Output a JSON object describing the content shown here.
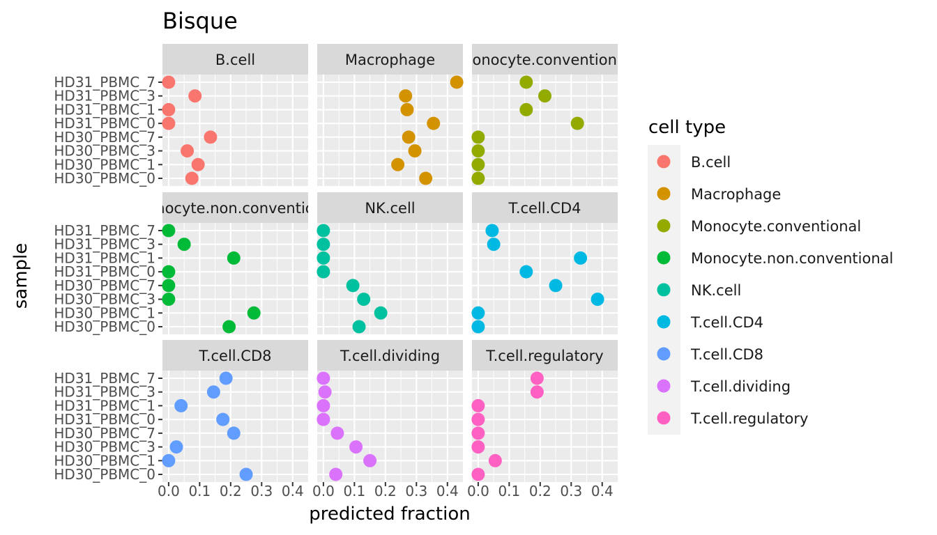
{
  "chart_data": {
    "type": "scatter",
    "title": "Bisque",
    "xlabel": "predicted fraction",
    "ylabel": "sample",
    "xlim": [
      -0.02,
      0.45
    ],
    "x_ticks": [
      "0.0",
      "0.1",
      "0.2",
      "0.3",
      "0.4"
    ],
    "x_tick_values": [
      0,
      0.1,
      0.2,
      0.3,
      0.4
    ],
    "samples": [
      "HD31_PBMC_7",
      "HD31_PBMC_3",
      "HD31_PBMC_1",
      "HD31_PBMC_0",
      "HD30_PBMC_7",
      "HD30_PBMC_3",
      "HD30_PBMC_1",
      "HD30_PBMC_0"
    ],
    "grid": true,
    "legend": {
      "title": "cell type",
      "position": "right",
      "entries": [
        {
          "label": "B.cell",
          "color": "#F8766D"
        },
        {
          "label": "Macrophage",
          "color": "#D39200"
        },
        {
          "label": "Monocyte.conventional",
          "color": "#93AA00"
        },
        {
          "label": "Monocyte.non.conventional",
          "color": "#00BA38"
        },
        {
          "label": "NK.cell",
          "color": "#00C19F"
        },
        {
          "label": "T.cell.CD4",
          "color": "#00B9E3"
        },
        {
          "label": "T.cell.CD8",
          "color": "#619CFF"
        },
        {
          "label": "T.cell.dividing",
          "color": "#DB72FB"
        },
        {
          "label": "T.cell.regulatory",
          "color": "#FF61C3"
        }
      ]
    },
    "series": [
      {
        "name": "B.cell",
        "strip": "B.cell",
        "color": "#F8766D",
        "values": [
          0.0,
          0.085,
          0.0,
          0.0,
          0.135,
          0.06,
          0.095,
          0.075
        ]
      },
      {
        "name": "Macrophage",
        "strip": "Macrophage",
        "color": "#D39200",
        "values": [
          0.43,
          0.265,
          0.27,
          0.355,
          0.275,
          0.295,
          0.24,
          0.33
        ]
      },
      {
        "name": "Monocyte.conventional",
        "strip": "Monocyte.conventional",
        "color": "#93AA00",
        "values": [
          0.155,
          0.215,
          0.155,
          0.32,
          0.0,
          0.0,
          0.0,
          0.0
        ]
      },
      {
        "name": "Monocyte.non.conventional",
        "strip": "Monocyte.non.conventional",
        "color": "#00BA38",
        "values": [
          0.0,
          0.05,
          0.21,
          0.0,
          0.0,
          0.0,
          0.275,
          0.195
        ]
      },
      {
        "name": "NK.cell",
        "strip": "NK.cell",
        "color": "#00C19F",
        "values": [
          0.0,
          0.0,
          0.0,
          0.0,
          0.095,
          0.13,
          0.185,
          0.115
        ]
      },
      {
        "name": "T.cell.CD4",
        "strip": "T.cell.CD4",
        "color": "#00B9E3",
        "values": [
          0.045,
          0.05,
          0.33,
          0.155,
          0.25,
          0.385,
          0.0,
          0.0
        ]
      },
      {
        "name": "T.cell.CD8",
        "strip": "T.cell.CD8",
        "color": "#619CFF",
        "values": [
          0.185,
          0.145,
          0.04,
          0.175,
          0.21,
          0.025,
          0.0,
          0.25
        ]
      },
      {
        "name": "T.cell.dividing",
        "strip": "T.cell.dividing",
        "color": "#DB72FB",
        "values": [
          0.0,
          0.005,
          0.0,
          0.0,
          0.045,
          0.105,
          0.15,
          0.04
        ]
      },
      {
        "name": "T.cell.regulatory",
        "strip": "T.cell.regulatory",
        "color": "#FF61C3",
        "values": [
          0.19,
          0.19,
          0.0,
          0.0,
          0.0,
          0.0,
          0.055,
          0.0
        ]
      }
    ]
  }
}
